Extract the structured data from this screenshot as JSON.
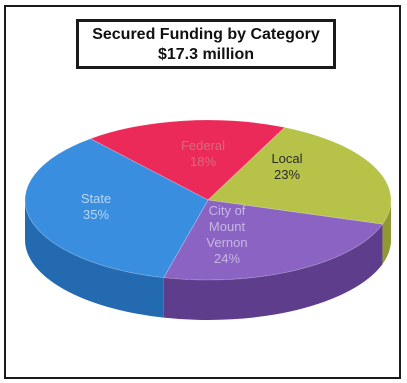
{
  "chart_data": {
    "type": "pie",
    "title": "Secured Funding by Category",
    "subtitle": "$17.3 million",
    "slices": [
      {
        "label": "Federal",
        "pct_label": "18%",
        "value": 18,
        "color": "#ec2a5a",
        "side": "#b01c44",
        "text_color": "#d86a7e"
      },
      {
        "label": "Local",
        "pct_label": "23%",
        "value": 23,
        "color": "#b7c249",
        "side": "#8f9833",
        "text_color": "#2b2b2b"
      },
      {
        "label": "City of Mount Vernon",
        "pct_label": "24%",
        "value": 24,
        "color": "#8b63c2",
        "side": "#5e3d8d",
        "text_color": "#c7b6e4"
      },
      {
        "label": "State",
        "pct_label": "35%",
        "value": 35,
        "color": "#3a8ee0",
        "side": "#246ab0",
        "text_color": "#b9d6f2"
      }
    ]
  }
}
